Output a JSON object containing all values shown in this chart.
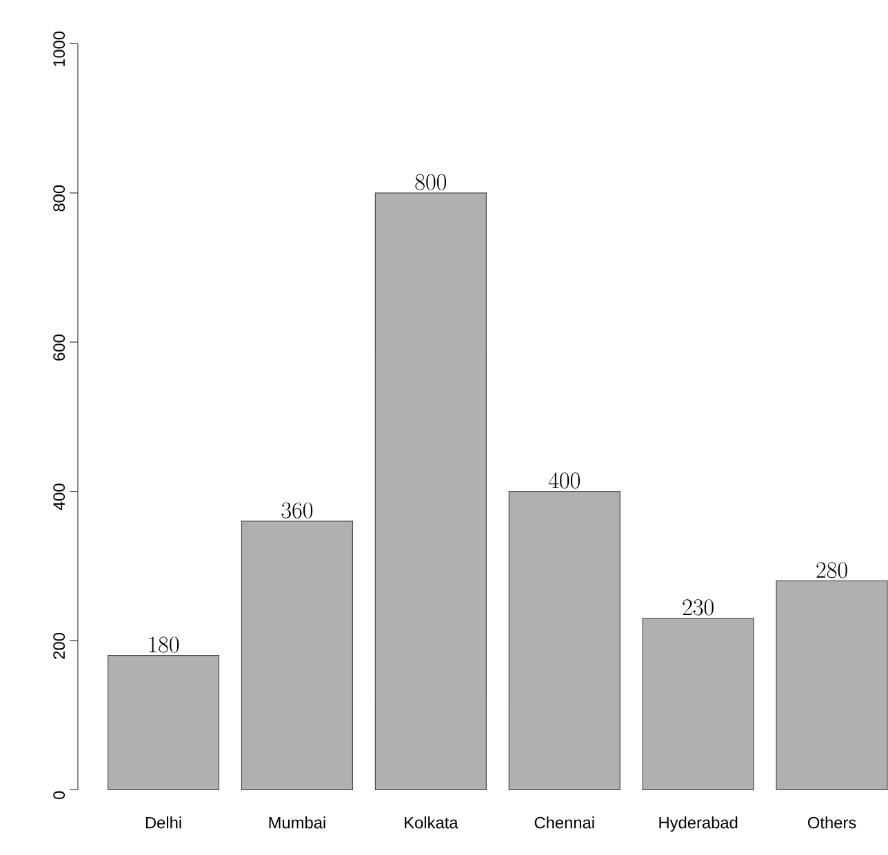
{
  "chart_data": {
    "type": "bar",
    "categories": [
      "Delhi",
      "Mumbai",
      "Kolkata",
      "Chennai",
      "Hyderabad",
      "Others"
    ],
    "values": [
      180,
      360,
      800,
      400,
      230,
      280
    ],
    "color": "#b0b0b0",
    "data_labels": true,
    "ylim": [
      0,
      1000
    ],
    "yticks": [
      0,
      200,
      400,
      600,
      800,
      1000
    ]
  }
}
